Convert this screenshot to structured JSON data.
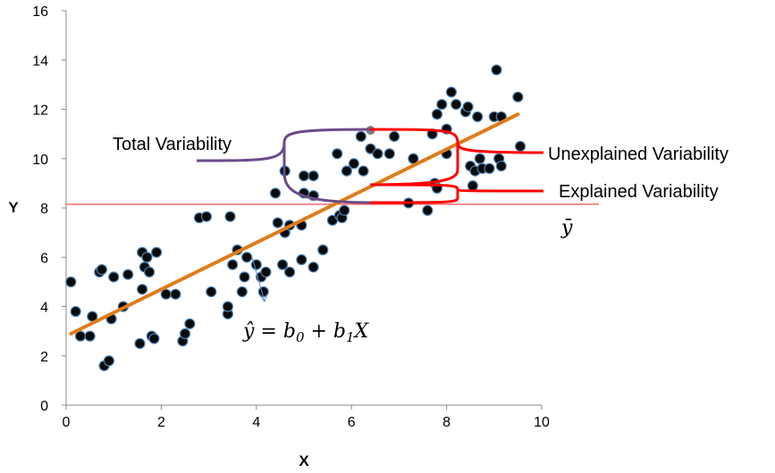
{
  "chart_data": {
    "type": "scatter",
    "title": "",
    "xlabel": "X",
    "ylabel": "Y",
    "xlim": [
      0,
      10
    ],
    "ylim": [
      0,
      16
    ],
    "x_ticks": [
      "0",
      "2",
      "4",
      "6",
      "8",
      "10"
    ],
    "y_ticks": [
      "0",
      "2",
      "4",
      "6",
      "8",
      "10",
      "12",
      "14",
      "16"
    ],
    "grid": false,
    "regression_line": {
      "x1": 0.1,
      "y1": 2.9,
      "x2": 9.5,
      "y2": 11.8,
      "color": "#e07b1a"
    },
    "mean_line": {
      "y": 8.15,
      "color": "#ff4d4d"
    },
    "highlight_point": {
      "x": 6.4,
      "y": 11.15,
      "color": "#808080"
    },
    "points": [
      [
        0.1,
        5.0
      ],
      [
        0.2,
        3.8
      ],
      [
        0.3,
        2.8
      ],
      [
        0.5,
        2.8
      ],
      [
        0.55,
        3.6
      ],
      [
        0.7,
        5.4
      ],
      [
        0.75,
        5.5
      ],
      [
        0.8,
        1.6
      ],
      [
        0.9,
        1.8
      ],
      [
        0.95,
        3.5
      ],
      [
        1.0,
        5.2
      ],
      [
        1.2,
        4.0
      ],
      [
        1.3,
        5.3
      ],
      [
        1.55,
        2.5
      ],
      [
        1.6,
        6.2
      ],
      [
        1.6,
        4.7
      ],
      [
        1.65,
        5.6
      ],
      [
        1.7,
        6.0
      ],
      [
        1.75,
        5.4
      ],
      [
        1.8,
        2.8
      ],
      [
        1.85,
        2.7
      ],
      [
        1.9,
        6.2
      ],
      [
        2.1,
        4.5
      ],
      [
        2.3,
        4.5
      ],
      [
        2.45,
        2.6
      ],
      [
        2.5,
        2.9
      ],
      [
        2.6,
        3.3
      ],
      [
        2.8,
        7.6
      ],
      [
        2.95,
        7.65
      ],
      [
        3.05,
        4.6
      ],
      [
        3.4,
        3.7
      ],
      [
        3.4,
        4.0
      ],
      [
        3.45,
        7.65
      ],
      [
        3.5,
        5.7
      ],
      [
        3.6,
        6.3
      ],
      [
        3.7,
        4.6
      ],
      [
        3.75,
        5.2
      ],
      [
        3.8,
        6.0
      ],
      [
        4.0,
        5.7
      ],
      [
        4.1,
        5.2
      ],
      [
        4.15,
        4.6
      ],
      [
        4.2,
        5.4
      ],
      [
        4.4,
        8.6
      ],
      [
        4.45,
        7.4
      ],
      [
        4.55,
        5.7
      ],
      [
        4.6,
        9.5
      ],
      [
        4.6,
        7.0
      ],
      [
        4.7,
        5.4
      ],
      [
        4.7,
        7.3
      ],
      [
        4.95,
        5.9
      ],
      [
        4.95,
        7.3
      ],
      [
        5.0,
        8.6
      ],
      [
        5.0,
        9.3
      ],
      [
        5.2,
        9.3
      ],
      [
        5.2,
        8.5
      ],
      [
        5.2,
        5.6
      ],
      [
        5.4,
        6.3
      ],
      [
        5.6,
        7.5
      ],
      [
        5.7,
        10.2
      ],
      [
        5.75,
        7.7
      ],
      [
        5.8,
        7.6
      ],
      [
        5.85,
        7.9
      ],
      [
        5.9,
        9.5
      ],
      [
        6.05,
        9.8
      ],
      [
        6.2,
        10.9
      ],
      [
        6.25,
        9.5
      ],
      [
        6.4,
        10.4
      ],
      [
        6.55,
        10.2
      ],
      [
        6.8,
        10.2
      ],
      [
        6.9,
        10.9
      ],
      [
        7.2,
        8.2
      ],
      [
        7.3,
        10.0
      ],
      [
        7.6,
        7.9
      ],
      [
        7.7,
        11.0
      ],
      [
        7.75,
        9.0
      ],
      [
        7.8,
        8.8
      ],
      [
        7.8,
        11.8
      ],
      [
        7.9,
        12.2
      ],
      [
        8.0,
        11.2
      ],
      [
        8.0,
        10.2
      ],
      [
        8.1,
        12.7
      ],
      [
        8.2,
        12.2
      ],
      [
        8.4,
        11.9
      ],
      [
        8.45,
        12.1
      ],
      [
        8.5,
        9.7
      ],
      [
        8.55,
        8.9
      ],
      [
        8.6,
        9.5
      ],
      [
        8.65,
        11.7
      ],
      [
        8.7,
        10.0
      ],
      [
        8.75,
        9.6
      ],
      [
        8.9,
        9.6
      ],
      [
        9.0,
        11.7
      ],
      [
        9.05,
        13.6
      ],
      [
        9.1,
        10.0
      ],
      [
        9.15,
        11.7
      ],
      [
        9.15,
        9.7
      ],
      [
        9.5,
        12.5
      ],
      [
        9.55,
        10.5
      ]
    ],
    "annotations": {
      "total": "Total Variability",
      "unexplained": "Unexplained Variability",
      "explained": "Explained Variability",
      "ybar_symbol": "ȳ",
      "equation_prefix": "ŷ = b",
      "sub0": "0",
      "equation_mid": " + b",
      "sub1": "1",
      "equation_suffix": "X"
    },
    "colors": {
      "point_fill": "#0a0a0a",
      "point_stroke": "#4a7fb0",
      "brace_total": "#6b4a8a",
      "brace_red": "#ff0000",
      "arrow": "#5b8fc7"
    }
  }
}
